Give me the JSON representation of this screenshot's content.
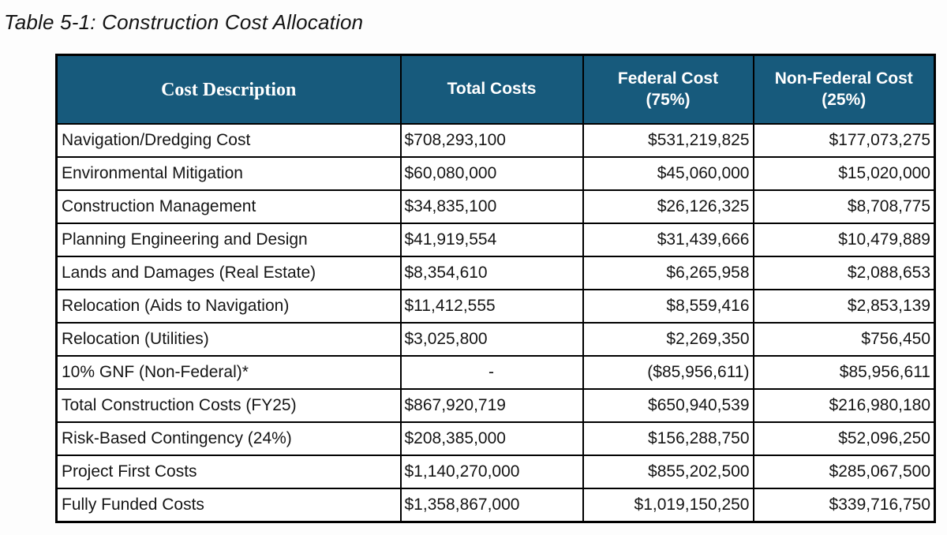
{
  "caption": "Table 5-1: Construction Cost Allocation",
  "table": {
    "columns": [
      {
        "label": "Cost Description",
        "sub": ""
      },
      {
        "label": "Total Costs",
        "sub": ""
      },
      {
        "label": "Federal Cost",
        "sub": "(75%)"
      },
      {
        "label": "Non-Federal Cost",
        "sub": "(25%)"
      }
    ],
    "column_keys": [
      "cost-description",
      "total-costs",
      "federal-cost",
      "non-federal-cost"
    ],
    "rows": [
      [
        "Navigation/Dredging Cost",
        "$708,293,100",
        "$531,219,825",
        "$177,073,275"
      ],
      [
        "Environmental Mitigation",
        "$60,080,000",
        "$45,060,000",
        "$15,020,000"
      ],
      [
        "Construction Management",
        "$34,835,100",
        "$26,126,325",
        "$8,708,775"
      ],
      [
        "Planning Engineering and Design",
        "$41,919,554",
        "$31,439,666",
        "$10,479,889"
      ],
      [
        "Lands and Damages (Real Estate)",
        "$8,354,610",
        "$6,265,958",
        "$2,088,653"
      ],
      [
        "Relocation (Aids to Navigation)",
        "$11,412,555",
        "$8,559,416",
        "$2,853,139"
      ],
      [
        "Relocation (Utilities)",
        "$3,025,800",
        "$2,269,350",
        "$756,450"
      ],
      [
        "10% GNF (Non-Federal)*",
        "-",
        "($85,956,611)",
        "$85,956,611"
      ],
      [
        "Total Construction Costs (FY25)",
        "$867,920,719",
        "$650,940,539",
        "$216,980,180"
      ],
      [
        "Risk-Based Contingency (24%)",
        "$208,385,000",
        "$156,288,750",
        "$52,096,250"
      ],
      [
        "Project First Costs",
        "$1,140,270,000",
        "$855,202,500",
        "$285,067,500"
      ],
      [
        "Fully Funded Costs",
        "$1,358,867,000",
        "$1,019,150,250",
        "$339,716,750"
      ]
    ],
    "header_bg_color": "#175A7C",
    "header_text_color": "#FFFFFF",
    "border_color": "#000000"
  }
}
